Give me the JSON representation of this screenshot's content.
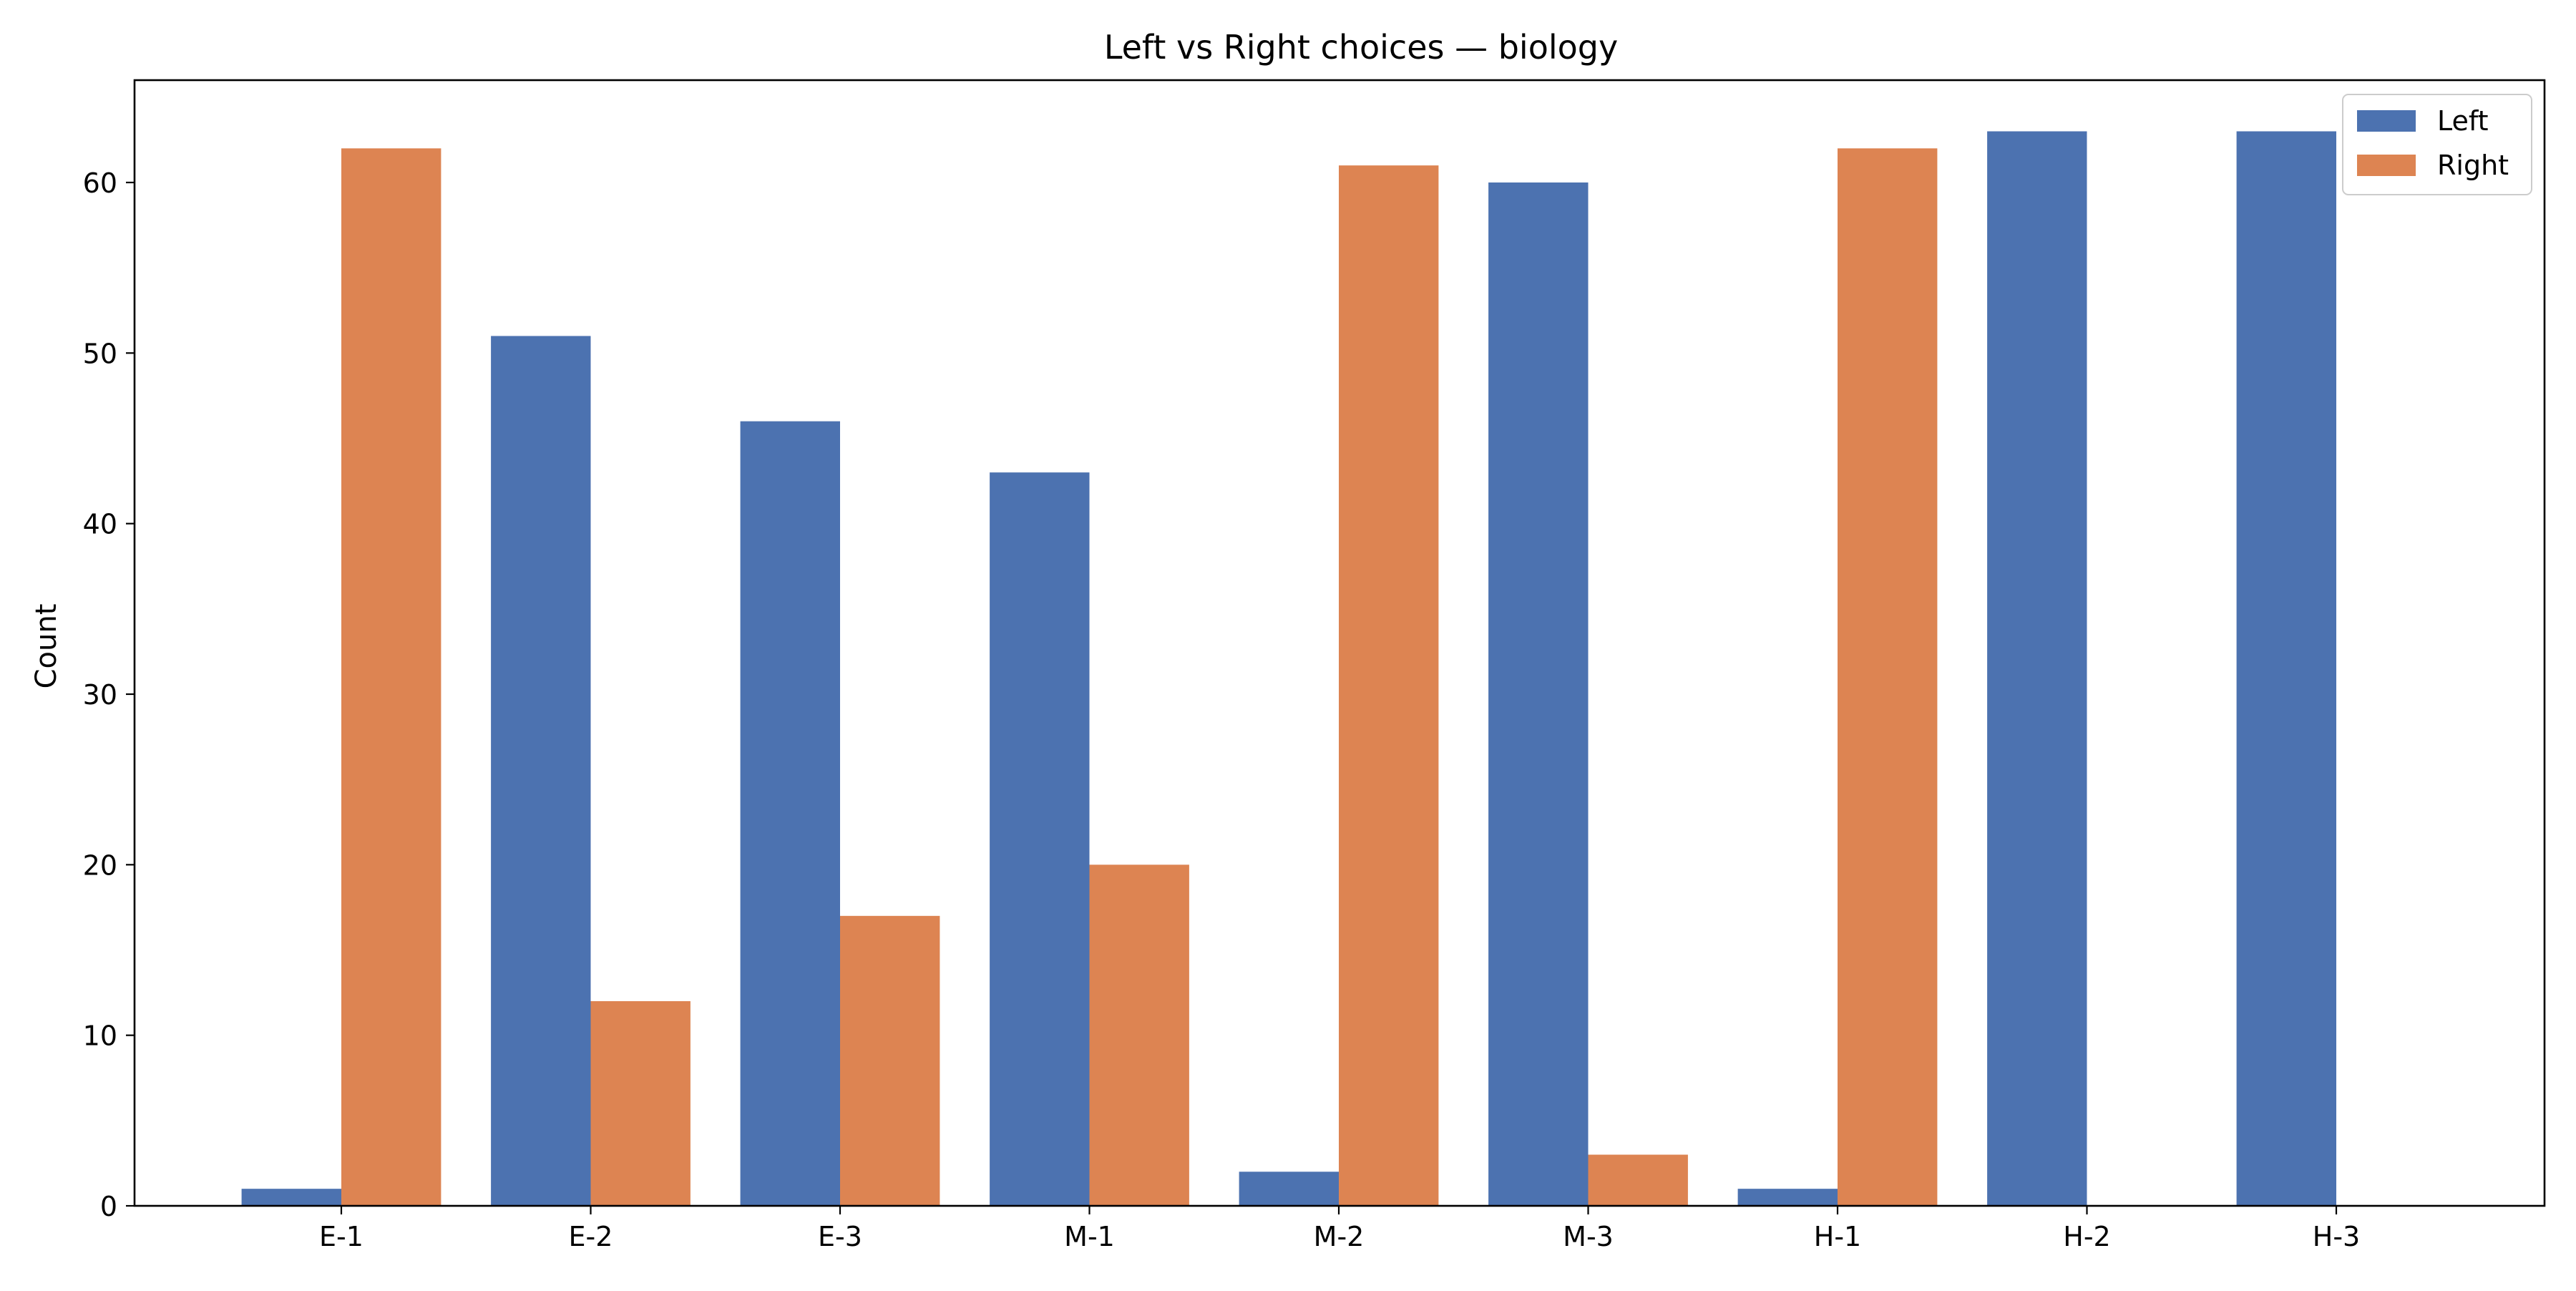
{
  "chart_data": {
    "type": "bar",
    "title": "Left vs Right choices — biology",
    "xlabel": "",
    "ylabel": "Count",
    "categories": [
      "E-1",
      "E-2",
      "E-3",
      "M-1",
      "M-2",
      "M-3",
      "H-1",
      "H-2",
      "H-3"
    ],
    "series": [
      {
        "name": "Left",
        "color": "#4c72b0",
        "values": [
          1,
          51,
          46,
          43,
          2,
          60,
          1,
          63,
          63
        ]
      },
      {
        "name": "Right",
        "color": "#dd8452",
        "values": [
          62,
          12,
          17,
          20,
          61,
          3,
          62,
          0,
          0
        ]
      }
    ],
    "ylim": [
      0,
      66
    ],
    "yticks": [
      0,
      10,
      20,
      30,
      40,
      50,
      60
    ],
    "grid": false,
    "legend_position": "top-right"
  }
}
